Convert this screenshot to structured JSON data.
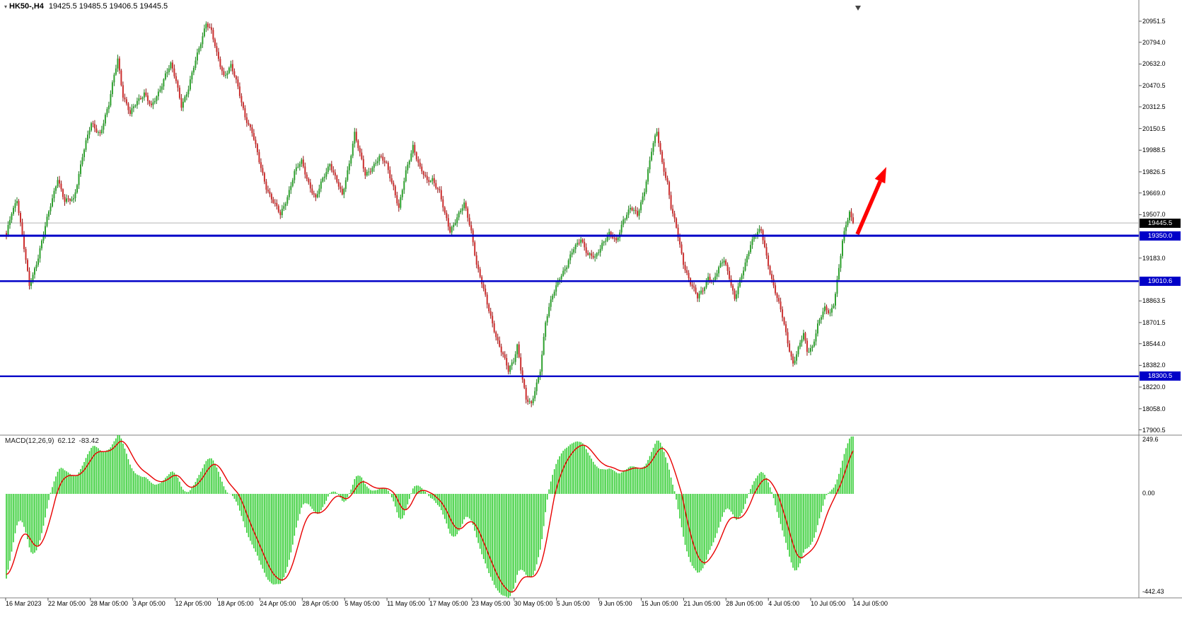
{
  "header": {
    "symbol_title": "HK50-,H4",
    "ohlc_text": "19425.5 19485.5 19406.5 19445.5"
  },
  "chart_data": {
    "type": "candlestick",
    "title": "HK50-,H4",
    "symbol": "HK50-",
    "timeframe": "H4",
    "last_ohlc": {
      "open": 19425.5,
      "high": 19485.5,
      "low": 19406.5,
      "close": 19445.5
    },
    "current_price": 19445.5,
    "current_price_label": "19445.5",
    "price_axis_visible_range": [
      17830,
      21110
    ],
    "price_axis_labels": [
      20951.5,
      20794.0,
      20632.0,
      20470.5,
      20312.5,
      20150.5,
      19988.5,
      19826.5,
      19669.0,
      19507.0,
      19183.0,
      18863.5,
      18701.5,
      18544.0,
      18382.0,
      18220.0,
      18058.0,
      17900.5
    ],
    "support_resistance_levels": [
      {
        "price": 19350.0,
        "label": "19350.0"
      },
      {
        "price": 19010.6,
        "label": "19010.6"
      },
      {
        "price": 18300.5,
        "label": "18300.5"
      }
    ],
    "time_axis_labels": [
      "16 Mar 2023",
      "22 Mar 05:00",
      "28 Mar 05:00",
      "3 Apr 05:00",
      "12 Apr 05:00",
      "18 Apr 05:00",
      "24 Apr 05:00",
      "28 Apr 05:00",
      "5 May 05:00",
      "11 May 05:00",
      "17 May 05:00",
      "23 May 05:00",
      "30 May 05:00",
      "5 Jun 05:00",
      "9 Jun 05:00",
      "15 Jun 05:00",
      "21 Jun 05:00",
      "28 Jun 05:00",
      "4 Jul 05:00",
      "10 Jul 05:00",
      "14 Jul 05:00"
    ],
    "bars": 480,
    "price_path_anchors": [
      [
        0,
        19350
      ],
      [
        3,
        19530
      ],
      [
        6,
        19630
      ],
      [
        10,
        19250
      ],
      [
        13,
        18970
      ],
      [
        18,
        19200
      ],
      [
        24,
        19520
      ],
      [
        29,
        19790
      ],
      [
        33,
        19600
      ],
      [
        38,
        19620
      ],
      [
        43,
        19950
      ],
      [
        48,
        20180
      ],
      [
        53,
        20120
      ],
      [
        58,
        20320
      ],
      [
        61,
        20550
      ],
      [
        63,
        20680
      ],
      [
        66,
        20400
      ],
      [
        70,
        20250
      ],
      [
        74,
        20360
      ],
      [
        78,
        20420
      ],
      [
        82,
        20300
      ],
      [
        86,
        20420
      ],
      [
        90,
        20560
      ],
      [
        93,
        20620
      ],
      [
        96,
        20500
      ],
      [
        99,
        20330
      ],
      [
        103,
        20450
      ],
      [
        107,
        20650
      ],
      [
        110,
        20800
      ],
      [
        113,
        20950
      ],
      [
        116,
        20870
      ],
      [
        119,
        20700
      ],
      [
        123,
        20550
      ],
      [
        127,
        20620
      ],
      [
        131,
        20450
      ],
      [
        135,
        20250
      ],
      [
        139,
        20120
      ],
      [
        143,
        19900
      ],
      [
        147,
        19720
      ],
      [
        151,
        19600
      ],
      [
        155,
        19500
      ],
      [
        159,
        19650
      ],
      [
        163,
        19820
      ],
      [
        167,
        19900
      ],
      [
        171,
        19750
      ],
      [
        175,
        19620
      ],
      [
        179,
        19770
      ],
      [
        183,
        19900
      ],
      [
        187,
        19750
      ],
      [
        190,
        19640
      ],
      [
        194,
        19900
      ],
      [
        197,
        20120
      ],
      [
        200,
        19950
      ],
      [
        203,
        19800
      ],
      [
        207,
        19870
      ],
      [
        211,
        19930
      ],
      [
        215,
        19880
      ],
      [
        219,
        19720
      ],
      [
        222,
        19550
      ],
      [
        226,
        19820
      ],
      [
        230,
        20030
      ],
      [
        234,
        19850
      ],
      [
        238,
        19750
      ],
      [
        241,
        19780
      ],
      [
        245,
        19680
      ],
      [
        248,
        19500
      ],
      [
        251,
        19380
      ],
      [
        255,
        19500
      ],
      [
        259,
        19580
      ],
      [
        263,
        19380
      ],
      [
        266,
        19150
      ],
      [
        269,
        19000
      ],
      [
        272,
        18830
      ],
      [
        275,
        18690
      ],
      [
        278,
        18570
      ],
      [
        281,
        18460
      ],
      [
        284,
        18330
      ],
      [
        287,
        18420
      ],
      [
        289,
        18540
      ],
      [
        292,
        18280
      ],
      [
        294,
        18120
      ],
      [
        297,
        18080
      ],
      [
        299,
        18200
      ],
      [
        302,
        18360
      ],
      [
        305,
        18700
      ],
      [
        309,
        18900
      ],
      [
        313,
        19050
      ],
      [
        317,
        19120
      ],
      [
        321,
        19250
      ],
      [
        325,
        19340
      ],
      [
        329,
        19200
      ],
      [
        333,
        19180
      ],
      [
        337,
        19300
      ],
      [
        341,
        19360
      ],
      [
        345,
        19300
      ],
      [
        349,
        19480
      ],
      [
        353,
        19550
      ],
      [
        357,
        19500
      ],
      [
        361,
        19700
      ],
      [
        365,
        19980
      ],
      [
        368,
        20120
      ],
      [
        371,
        19900
      ],
      [
        374,
        19750
      ],
      [
        376,
        19560
      ],
      [
        379,
        19400
      ],
      [
        383,
        19150
      ],
      [
        387,
        19000
      ],
      [
        391,
        18880
      ],
      [
        394,
        18950
      ],
      [
        397,
        19050
      ],
      [
        400,
        19000
      ],
      [
        403,
        19100
      ],
      [
        406,
        19180
      ],
      [
        409,
        19050
      ],
      [
        412,
        18870
      ],
      [
        415,
        19000
      ],
      [
        418,
        19150
      ],
      [
        421,
        19300
      ],
      [
        424,
        19360
      ],
      [
        427,
        19380
      ],
      [
        430,
        19200
      ],
      [
        433,
        19030
      ],
      [
        436,
        18880
      ],
      [
        439,
        18740
      ],
      [
        442,
        18560
      ],
      [
        445,
        18400
      ],
      [
        448,
        18500
      ],
      [
        451,
        18610
      ],
      [
        453,
        18490
      ],
      [
        456,
        18530
      ],
      [
        459,
        18680
      ],
      [
        463,
        18800
      ],
      [
        466,
        18780
      ],
      [
        468,
        18850
      ],
      [
        471,
        19100
      ],
      [
        473,
        19300
      ],
      [
        475,
        19420
      ],
      [
        477,
        19530
      ],
      [
        479,
        19445.5
      ]
    ],
    "macd": {
      "label": "MACD(12,26,9)",
      "value_main": "62.12",
      "value_signal": "-83.42",
      "params": [
        12,
        26,
        9
      ],
      "axis_max": 249.6,
      "axis_min": -442.43,
      "axis_max_label": "249.6",
      "axis_zero_label": "0.00",
      "axis_min_label": "-442.43"
    },
    "annotations": [
      {
        "type": "arrow",
        "color": "#FF0000",
        "direction": "up-right"
      }
    ],
    "colors": {
      "bull": "#2EA12E",
      "bear": "#CC2E2E",
      "bull_wick": "#1E7A1E",
      "bear_wick": "#8F1414",
      "histogram": "#32CD32",
      "signal_line": "#E80000",
      "level_line": "#0000C8",
      "current_price_line": "#B4B4B4",
      "background": "#FFFFFF"
    }
  }
}
